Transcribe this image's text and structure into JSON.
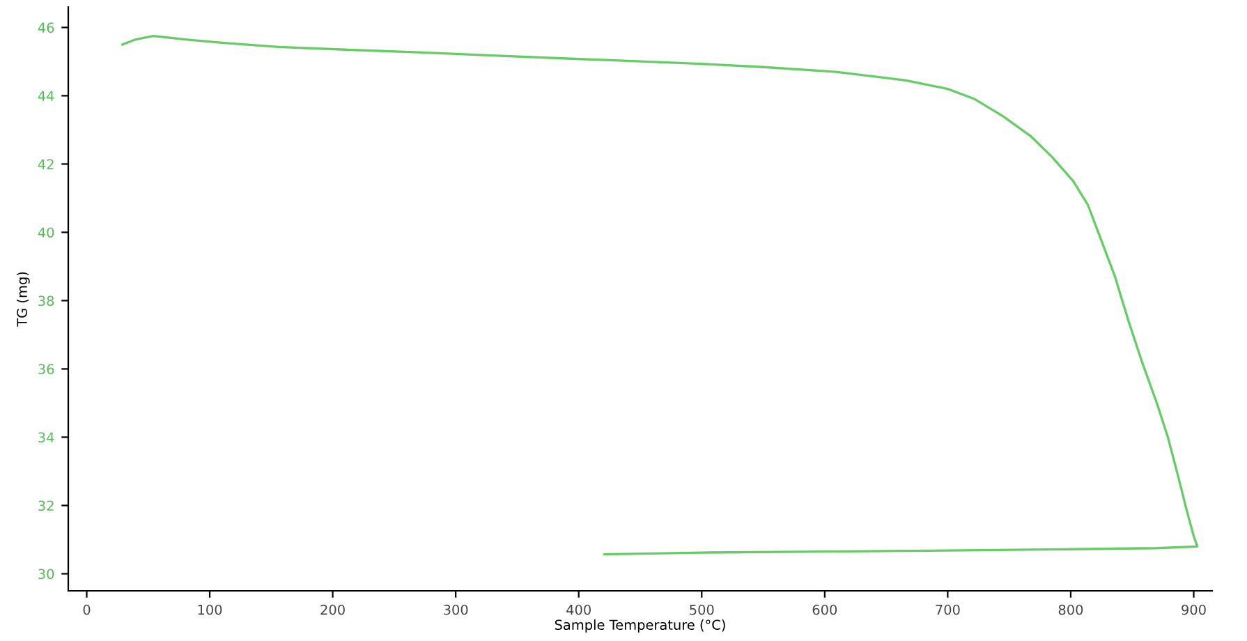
{
  "chart_data": {
    "type": "line",
    "xlabel": "Sample Temperature (°C)",
    "ylabel": "TG (mg)",
    "xlim": [
      -15,
      915
    ],
    "ylim": [
      29.5,
      46.6
    ],
    "xticks": [
      0,
      100,
      200,
      300,
      400,
      500,
      600,
      700,
      800,
      900
    ],
    "yticks": [
      30,
      32,
      34,
      36,
      38,
      40,
      42,
      44,
      46
    ],
    "grid": false,
    "marker": "none",
    "line_style": "solid",
    "series": [
      {
        "color": "#66cc66",
        "x": [
          29,
          40,
          54,
          80,
          110,
          156,
          210,
          270,
          330,
          383,
          440,
          496,
          550,
          609,
          666,
          700,
          722,
          745,
          768,
          785,
          802,
          814,
          824,
          836,
          847,
          858,
          870,
          879,
          887,
          894,
          900,
          903,
          870,
          800,
          700,
          600,
          500,
          421
        ],
        "values": [
          45.5,
          45.65,
          45.75,
          45.65,
          45.55,
          45.43,
          45.35,
          45.27,
          45.18,
          45.1,
          45.02,
          44.94,
          44.84,
          44.7,
          44.45,
          44.2,
          43.9,
          43.4,
          42.8,
          42.2,
          41.5,
          40.8,
          39.85,
          38.7,
          37.4,
          36.2,
          35.0,
          34.0,
          32.9,
          31.9,
          31.1,
          30.8,
          30.75,
          30.72,
          30.68,
          30.65,
          30.62,
          30.57
        ]
      }
    ]
  }
}
